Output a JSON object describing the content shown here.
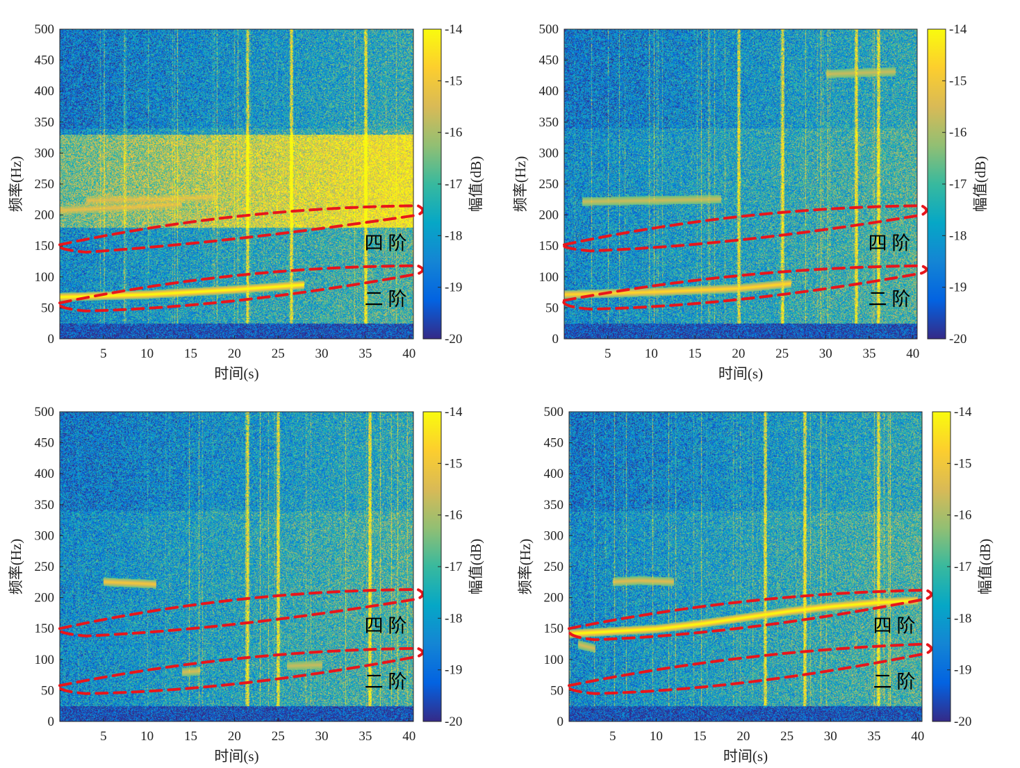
{
  "figure": {
    "panel_count": 4
  },
  "colors": {
    "colormap": "parula",
    "colormap_stops": [
      "#352a87",
      "#0363e1",
      "#1485d4",
      "#06a7c6",
      "#38b99e",
      "#92bf73",
      "#d9ba56",
      "#fcce2e",
      "#f9fb0e"
    ],
    "annotation_ellipse": "#e8161b",
    "axis": "#262626"
  },
  "chart_data": [
    {
      "type": "heatmap",
      "panel": "top-left",
      "xlabel": "时间(s)",
      "ylabel": "频率(Hz)",
      "colorbar_label": "幅值(dB)",
      "xlim": [
        0,
        40.5
      ],
      "ylim": [
        0,
        500
      ],
      "xticks": [
        5,
        10,
        15,
        20,
        25,
        30,
        35,
        40
      ],
      "yticks": [
        0,
        50,
        100,
        150,
        200,
        250,
        300,
        350,
        400,
        450,
        500
      ],
      "clim": [
        -20,
        -14
      ],
      "cticks": [
        -14,
        -15,
        -16,
        -17,
        -18,
        -19,
        -20
      ],
      "bright_band_hz": [
        180,
        330
      ],
      "ridges": [
        {
          "points": [
            [
              0,
              68
            ],
            [
              10,
              72
            ],
            [
              20,
              80
            ],
            [
              28,
              88
            ]
          ],
          "strength": 1.0
        },
        {
          "points": [
            [
              0,
              208
            ],
            [
              8,
              213
            ],
            [
              14,
              218
            ]
          ],
          "strength": 0.5
        },
        {
          "points": [
            [
              3,
              224
            ],
            [
              12,
              226
            ],
            [
              18,
              230
            ]
          ],
          "strength": 0.45
        }
      ],
      "vertical_streaks_s": [
        21.5,
        26.5,
        35
      ],
      "ellipses": [
        {
          "label": "四 阶",
          "points": [
            [
              0,
              152
            ],
            [
              20,
              205
            ],
            [
              41,
              215
            ],
            [
              41,
              200
            ],
            [
              20,
              165
            ],
            [
              3,
              140
            ]
          ]
        },
        {
          "label": "二 阶",
          "points": [
            [
              0,
              58
            ],
            [
              20,
              110
            ],
            [
              41,
              118
            ],
            [
              41,
              105
            ],
            [
              20,
              60
            ],
            [
              3,
              45
            ]
          ]
        }
      ],
      "annotations": [
        "四 阶",
        "二 阶"
      ]
    },
    {
      "type": "heatmap",
      "panel": "top-right",
      "xlabel": "时间(s)",
      "ylabel": "频率(Hz)",
      "colorbar_label": "幅值(dB)",
      "xlim": [
        0,
        40.5
      ],
      "ylim": [
        0,
        500
      ],
      "xticks": [
        5,
        10,
        15,
        20,
        25,
        30,
        35,
        40
      ],
      "yticks": [
        0,
        50,
        100,
        150,
        200,
        250,
        300,
        350,
        400,
        450,
        500
      ],
      "clim": [
        -20,
        -14
      ],
      "cticks": [
        -14,
        -15,
        -16,
        -17,
        -18,
        -19,
        -20
      ],
      "bright_band_hz": [],
      "ridges": [
        {
          "points": [
            [
              0,
              72
            ],
            [
              10,
              76
            ],
            [
              20,
              82
            ],
            [
              26,
              90
            ]
          ],
          "strength": 0.75
        },
        {
          "points": [
            [
              2,
              222
            ],
            [
              10,
              224
            ],
            [
              18,
              226
            ]
          ],
          "strength": 0.35
        },
        {
          "points": [
            [
              30,
              428
            ],
            [
              38,
              432
            ]
          ],
          "strength": 0.35
        }
      ],
      "vertical_streaks_s": [
        20,
        25,
        33.5,
        36
      ],
      "ellipses": [
        {
          "label": "四 阶",
          "points": [
            [
              0,
              152
            ],
            [
              20,
              205
            ],
            [
              41,
              215
            ],
            [
              41,
              200
            ],
            [
              20,
              160
            ],
            [
              3,
              142
            ]
          ]
        },
        {
          "label": "二 阶",
          "points": [
            [
              0,
              62
            ],
            [
              20,
              108
            ],
            [
              41,
              118
            ],
            [
              41,
              106
            ],
            [
              20,
              62
            ],
            [
              3,
              48
            ]
          ]
        }
      ],
      "annotations": [
        "四 阶",
        "二 阶"
      ]
    },
    {
      "type": "heatmap",
      "panel": "bottom-left",
      "xlabel": "时间(s)",
      "ylabel": "频率(Hz)",
      "colorbar_label": "幅值(dB)",
      "xlim": [
        0,
        40.5
      ],
      "ylim": [
        0,
        500
      ],
      "xticks": [
        5,
        10,
        15,
        20,
        25,
        30,
        35,
        40
      ],
      "yticks": [
        0,
        50,
        100,
        150,
        200,
        250,
        300,
        350,
        400,
        450,
        500
      ],
      "clim": [
        -20,
        -14
      ],
      "cticks": [
        -14,
        -15,
        -16,
        -17,
        -18,
        -19,
        -20
      ],
      "bright_band_hz": [],
      "ridges": [
        {
          "points": [
            [
              5,
              226
            ],
            [
              8,
              224
            ],
            [
              11,
              222
            ]
          ],
          "strength": 0.6
        },
        {
          "points": [
            [
              14,
              80
            ],
            [
              16,
              82
            ]
          ],
          "strength": 0.4
        },
        {
          "points": [
            [
              26,
              90
            ],
            [
              30,
              92
            ]
          ],
          "strength": 0.35
        }
      ],
      "vertical_streaks_s": [
        21.5,
        25,
        35.5
      ],
      "ellipses": [
        {
          "label": "四 阶",
          "points": [
            [
              0,
              150
            ],
            [
              20,
              205
            ],
            [
              41,
              213
            ],
            [
              41,
              198
            ],
            [
              20,
              158
            ],
            [
              3,
              138
            ]
          ]
        },
        {
          "label": "二 阶",
          "points": [
            [
              0,
              58
            ],
            [
              20,
              108
            ],
            [
              41,
              118
            ],
            [
              41,
              105
            ],
            [
              20,
              58
            ],
            [
              3,
              45
            ]
          ]
        }
      ],
      "annotations": [
        "四 阶",
        "二 阶"
      ]
    },
    {
      "type": "heatmap",
      "panel": "bottom-right",
      "xlabel": "时间(s)",
      "ylabel": "频率(Hz)",
      "colorbar_label": "幅值(dB)",
      "xlim": [
        0,
        40.5
      ],
      "ylim": [
        0,
        500
      ],
      "xticks": [
        5,
        10,
        15,
        20,
        25,
        30,
        35,
        40
      ],
      "yticks": [
        0,
        50,
        100,
        150,
        200,
        250,
        300,
        350,
        400,
        450,
        500
      ],
      "clim": [
        -20,
        -14
      ],
      "cticks": [
        -14,
        -15,
        -16,
        -17,
        -18,
        -19,
        -20
      ],
      "bright_band_hz": [],
      "ridges": [
        {
          "points": [
            [
              0,
              142
            ],
            [
              5,
              146
            ],
            [
              10,
              150
            ],
            [
              15,
              158
            ],
            [
              20,
              168
            ],
            [
              25,
              178
            ],
            [
              30,
              186
            ],
            [
              35,
              192
            ],
            [
              40,
              196
            ]
          ],
          "strength": 1.0
        },
        {
          "points": [
            [
              5,
              226
            ],
            [
              8,
              228
            ],
            [
              12,
              226
            ]
          ],
          "strength": 0.45
        },
        {
          "points": [
            [
              1,
              125
            ],
            [
              3,
              118
            ]
          ],
          "strength": 0.4
        }
      ],
      "vertical_streaks_s": [
        22.5,
        27,
        35.5
      ],
      "ellipses": [
        {
          "label": "四 阶",
          "points": [
            [
              0,
              150
            ],
            [
              20,
              200
            ],
            [
              41,
              212
            ],
            [
              41,
              198
            ],
            [
              20,
              150
            ],
            [
              3,
              132
            ]
          ]
        },
        {
          "label": "二 阶",
          "points": [
            [
              0,
              58
            ],
            [
              20,
              108
            ],
            [
              41,
              125
            ],
            [
              41,
              110
            ],
            [
              20,
              60
            ],
            [
              3,
              45
            ]
          ]
        }
      ],
      "annotations": [
        "四 阶",
        "二 阶"
      ]
    }
  ]
}
